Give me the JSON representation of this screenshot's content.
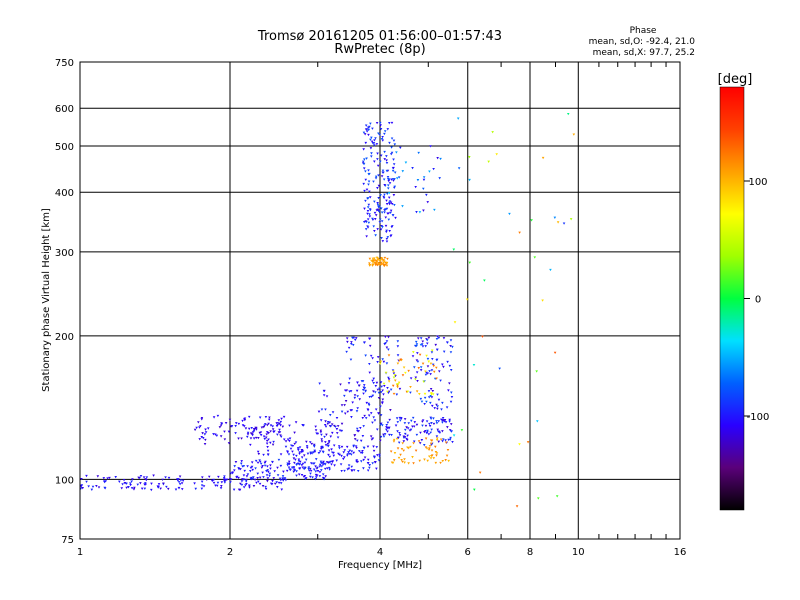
{
  "chart_data": {
    "type": "scatter",
    "title": "Tromsø 20161205 01:56:00–01:57:43",
    "subtitle": "RwPretec (8p)",
    "xlabel": "Frequency [MHz]",
    "ylabel": "Stationary phase Virtual Height [km]",
    "x_scale": "log",
    "y_scale": "log",
    "xlim": [
      1,
      16
    ],
    "ylim": [
      75,
      750
    ],
    "x_ticks": [
      1,
      2,
      4,
      6,
      8,
      10,
      16
    ],
    "y_ticks": [
      75,
      100,
      200,
      300,
      400,
      500,
      600,
      750
    ],
    "grid": true,
    "stats": {
      "heading": "Phase",
      "line_o": "mean, sd,O: -92.4, 21.0",
      "line_x": "mean, sd,X:  97.7, 25.2"
    },
    "colorbar": {
      "label": "[deg]",
      "ticks": [
        100,
        0,
        -100
      ],
      "range": [
        -180,
        180
      ],
      "colors": [
        "#000000",
        "#5a007a",
        "#2a00ff",
        "#0060ff",
        "#00e0ff",
        "#00ff40",
        "#a0ff00",
        "#ffff00",
        "#ffa000",
        "#ff4000",
        "#ff0000"
      ]
    },
    "clusters": [
      {
        "name": "o-trace-low",
        "xr": [
          1.0,
          2.6
        ],
        "yr": [
          95,
          102
        ],
        "n": 160,
        "ph": -105,
        "sp": 15
      },
      {
        "name": "o-trace-low-b",
        "xr": [
          2.0,
          3.2
        ],
        "yr": [
          100,
          110
        ],
        "n": 120,
        "ph": -100,
        "sp": 15
      },
      {
        "name": "o-trace-band-1",
        "xr": [
          1.7,
          2.6
        ],
        "yr": [
          118,
          136
        ],
        "n": 90,
        "ph": -110,
        "sp": 12
      },
      {
        "name": "o-trace-band-2",
        "xr": [
          2.2,
          3.4
        ],
        "yr": [
          112,
          132
        ],
        "n": 90,
        "ph": -108,
        "sp": 12
      },
      {
        "name": "o-trace-rise",
        "xr": [
          2.6,
          4.0
        ],
        "yr": [
          104,
          118
        ],
        "n": 140,
        "ph": -100,
        "sp": 15
      },
      {
        "name": "o-trace-mid",
        "xr": [
          3.0,
          4.2
        ],
        "yr": [
          120,
          160
        ],
        "n": 110,
        "ph": -105,
        "sp": 18
      },
      {
        "name": "o-trace-mid-2",
        "xr": [
          3.4,
          4.4
        ],
        "yr": [
          150,
          200
        ],
        "n": 70,
        "ph": -100,
        "sp": 18
      },
      {
        "name": "o-trace-upper",
        "xr": [
          4.0,
          5.6
        ],
        "yr": [
          118,
          135
        ],
        "n": 110,
        "ph": -100,
        "sp": 20
      },
      {
        "name": "o-trace-upper-2",
        "xr": [
          4.6,
          5.6
        ],
        "yr": [
          140,
          200
        ],
        "n": 90,
        "ph": -95,
        "sp": 25
      },
      {
        "name": "f-spread",
        "xr": [
          3.7,
          4.3
        ],
        "yr": [
          315,
          560
        ],
        "n": 200,
        "ph": -95,
        "sp": 20
      },
      {
        "name": "f-spread-2",
        "xr": [
          4.1,
          5.3
        ],
        "yr": [
          360,
          500
        ],
        "n": 30,
        "ph": -80,
        "sp": 40
      },
      {
        "name": "x-trace-285",
        "xr": [
          3.8,
          4.15
        ],
        "yr": [
          280,
          292
        ],
        "n": 60,
        "ph": 110,
        "sp": 10
      },
      {
        "name": "x-trace-low",
        "xr": [
          4.2,
          5.5
        ],
        "yr": [
          108,
          122
        ],
        "n": 60,
        "ph": 110,
        "sp": 15
      },
      {
        "name": "x-trace-mid",
        "xr": [
          4.0,
          5.2
        ],
        "yr": [
          150,
          190
        ],
        "n": 50,
        "ph": 90,
        "sp": 40
      },
      {
        "name": "x-sparse",
        "xr": [
          5.6,
          9.8
        ],
        "yr": [
          80,
          600
        ],
        "n": 40,
        "ph": 30,
        "sp": 120
      }
    ]
  }
}
